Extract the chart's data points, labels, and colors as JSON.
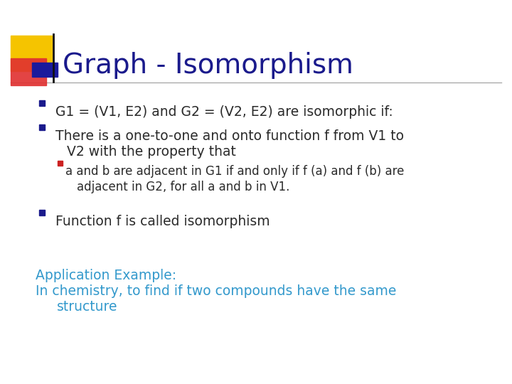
{
  "title": "Graph - Isomorphism",
  "title_color": "#1a1a8c",
  "title_fontsize": 28,
  "bg_color": "#ffffff",
  "bullet_color": "#2b2b2b",
  "bullet_fontsize": 13.5,
  "sub_bullet_fontsize": 12,
  "app_color": "#3399cc",
  "app_fontsize": 13.5,
  "bullet_square_color": "#1a1a8c",
  "sub_bullet_square_color": "#cc2222",
  "separator_color": "#aaaaaa",
  "deco_yellow": "#f5c400",
  "deco_red": "#e03030",
  "deco_blue": "#1a1a9c",
  "deco_line_color": "#111111",
  "bullet1": "G1 = (V1, E2) and G2 = (V2, E2) are isomorphic if:",
  "bullet2_line1": "There is a one-to-one and onto function f from V1 to",
  "bullet2_line2": "V2 with the property that",
  "sub_bullet_line1": "a and b are adjacent in G1 if and only if f (a) and f (b) are",
  "sub_bullet_line2": "adjacent in G2, for all a and b in V1.",
  "bullet3": "Function f is called isomorphism",
  "app_line1": "Application Example:",
  "app_line2": "In chemistry, to find if two compounds have the same",
  "app_line3": "   structure"
}
